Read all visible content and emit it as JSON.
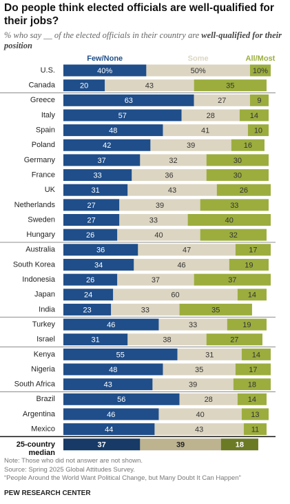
{
  "chart_data": {
    "type": "stacked-bar",
    "title": "Do people think elected officials are well-qualified for their jobs?",
    "subtitle": [
      "% who say __ of the elected officials in their country are ",
      "well-qualified for their position"
    ],
    "categories": [
      "U.S.",
      "Canada",
      "Greece",
      "Italy",
      "Spain",
      "Poland",
      "Germany",
      "France",
      "UK",
      "Netherlands",
      "Sweden",
      "Hungary",
      "Australia",
      "South Korea",
      "Indonesia",
      "Japan",
      "India",
      "Turkey",
      "Israel",
      "Kenya",
      "Nigeria",
      "South Africa",
      "Brazil",
      "Argentina",
      "Mexico"
    ],
    "series": [
      {
        "name": "Few/None",
        "color": "#1f4e8a",
        "text_color": "#ffffff",
        "values": [
          40,
          20,
          63,
          57,
          48,
          42,
          37,
          33,
          31,
          27,
          27,
          26,
          36,
          34,
          26,
          24,
          23,
          46,
          31,
          55,
          48,
          43,
          56,
          46,
          44
        ],
        "value_labels": [
          "40%",
          "20",
          "63",
          "57",
          "48",
          "42",
          "37",
          "33",
          "31",
          "27",
          "27",
          "26",
          "36",
          "34",
          "26",
          "24",
          "23",
          "46",
          "31",
          "55",
          "48",
          "43",
          "56",
          "46",
          "44"
        ]
      },
      {
        "name": "Some",
        "color": "#dcd5c2",
        "text_color": "#333333",
        "values": [
          50,
          43,
          27,
          28,
          41,
          39,
          32,
          36,
          43,
          39,
          33,
          40,
          47,
          46,
          37,
          60,
          33,
          33,
          38,
          31,
          35,
          39,
          28,
          40,
          43
        ],
        "value_labels": [
          "50%",
          "43",
          "27",
          "28",
          "41",
          "39",
          "32",
          "36",
          "43",
          "39",
          "33",
          "40",
          "47",
          "46",
          "37",
          "60",
          "33",
          "33",
          "38",
          "31",
          "35",
          "39",
          "28",
          "40",
          "43"
        ]
      },
      {
        "name": "All/Most",
        "color": "#9cad3e",
        "text_color": "#333333",
        "values": [
          10,
          35,
          9,
          14,
          10,
          16,
          30,
          30,
          26,
          33,
          40,
          32,
          17,
          19,
          37,
          14,
          35,
          19,
          27,
          14,
          17,
          18,
          14,
          13,
          11
        ],
        "value_labels": [
          "10%",
          "35",
          "9",
          "14",
          "10",
          "16",
          "30",
          "30",
          "26",
          "33",
          "40",
          "32",
          "17",
          "19",
          "37",
          "14",
          "35",
          "19",
          "27",
          "14",
          "17",
          "18",
          "14",
          "13",
          "11"
        ]
      }
    ],
    "median": {
      "label": "25-country median",
      "values": [
        37,
        39,
        18
      ],
      "colors": [
        "#173a66",
        "#bdb38f",
        "#6b7a24"
      ],
      "text_colors": [
        "#ffffff",
        "#222222",
        "#ffffff"
      ]
    },
    "xlim": [
      0,
      100
    ],
    "notes": [
      "Note: Those who did not answer are not shown.",
      "Source: Spring 2025 Global Attitudes Survey.",
      "“People Around the World Want Political Change, but Many Doubt It Can Happen”"
    ],
    "source_org": "PEW RESEARCH CENTER"
  }
}
